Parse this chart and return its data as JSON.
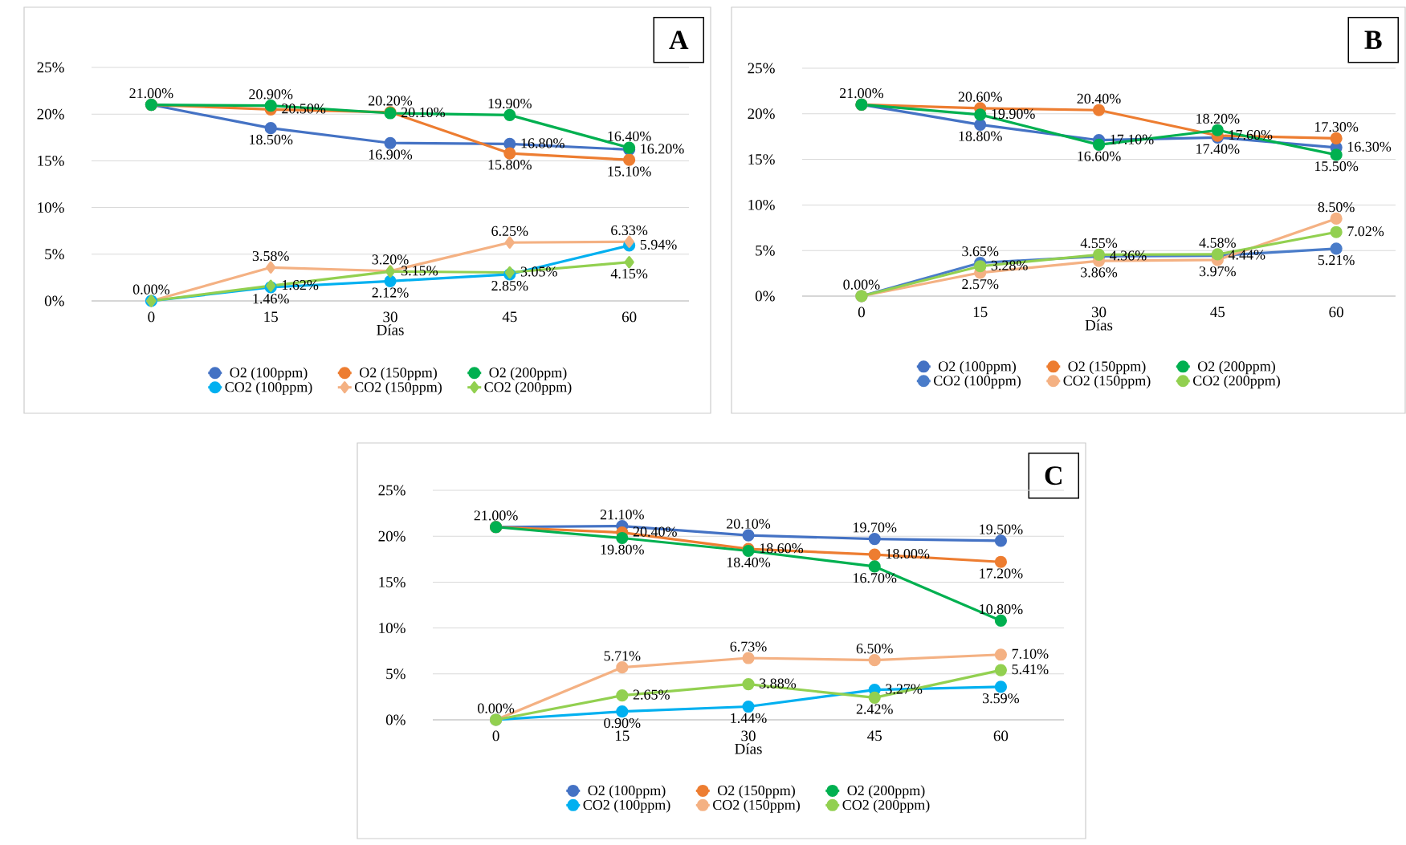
{
  "chart_data": [
    {
      "type": "line",
      "title": "A",
      "xlabel": "Días",
      "categories": [
        "0",
        "15",
        "30",
        "45",
        "60"
      ],
      "ylim": [
        0,
        25
      ],
      "yticks": [
        {
          "value": 0,
          "label": "0%"
        },
        {
          "value": 5,
          "label": "5%"
        },
        {
          "value": 10,
          "label": "10%"
        },
        {
          "value": 15,
          "label": "15%"
        },
        {
          "value": 20,
          "label": "20%"
        },
        {
          "value": 25,
          "label": "25%"
        }
      ],
      "grid": "y",
      "legend": "bottom",
      "marker": "circle",
      "line_style": "solid",
      "series": [
        {
          "name": "O2 (100ppm)",
          "color": "#4472c4",
          "values": [
            21.0,
            18.5,
            16.9,
            16.8,
            16.2
          ],
          "value_labels": [
            "21.00%",
            "18.50%",
            "16.90%",
            "16.80%",
            "16.20%"
          ]
        },
        {
          "name": "O2 (150ppm)",
          "color": "#ed7d31",
          "values": [
            21.0,
            20.5,
            20.2,
            15.8,
            15.1
          ],
          "value_labels": [
            null,
            "20.50%",
            "20.20%",
            "15.80%",
            "15.10%"
          ]
        },
        {
          "name": "O2 (200ppm)",
          "color": "#00b050",
          "values": [
            21.0,
            20.9,
            20.1,
            19.9,
            16.4
          ],
          "value_labels": [
            null,
            "20.90%",
            "20.10%",
            "19.90%",
            "16.40%"
          ]
        },
        {
          "name": "CO2 (100ppm)",
          "color": "#00b0f0",
          "values": [
            0.0,
            1.46,
            2.12,
            2.85,
            5.94
          ],
          "value_labels": [
            null,
            "1.46%",
            "2.12%",
            "2.85%",
            "5.94%"
          ]
        },
        {
          "name": "CO2 (150ppm)",
          "color": "#f4b183",
          "marker": "diamond",
          "values": [
            0.0,
            3.58,
            3.2,
            6.25,
            6.33
          ],
          "value_labels": [
            "0.00%",
            "3.58%",
            "3.20%",
            "6.25%",
            "6.33%"
          ]
        },
        {
          "name": "CO2 (200ppm)",
          "color": "#92d050",
          "marker": "diamond",
          "values": [
            0.0,
            1.62,
            3.15,
            3.05,
            4.15
          ],
          "value_labels": [
            null,
            "1.62%",
            "3.15%",
            "3.05%",
            "4.15%"
          ]
        }
      ]
    },
    {
      "type": "line",
      "title": "B",
      "xlabel": "Días",
      "categories": [
        "0",
        "15",
        "30",
        "45",
        "60"
      ],
      "ylim": [
        0,
        25
      ],
      "yticks": [
        {
          "value": 0,
          "label": "0%"
        },
        {
          "value": 5,
          "label": "5%"
        },
        {
          "value": 10,
          "label": "10%"
        },
        {
          "value": 15,
          "label": "15%"
        },
        {
          "value": 20,
          "label": "20%"
        },
        {
          "value": 25,
          "label": "25%"
        }
      ],
      "grid": "y",
      "legend": "bottom",
      "marker": "circle",
      "line_style": "solid",
      "series": [
        {
          "name": "O2 (100ppm)",
          "color": "#4472c4",
          "values": [
            21.0,
            18.8,
            17.1,
            17.4,
            16.3
          ],
          "value_labels": [
            "21.00%",
            "18.80%",
            "17.10%",
            "17.40%",
            "16.30%"
          ]
        },
        {
          "name": "O2 (150ppm)",
          "color": "#ed7d31",
          "values": [
            21.0,
            20.6,
            20.4,
            17.6,
            17.3
          ],
          "value_labels": [
            null,
            "20.60%",
            "20.40%",
            "17.60%",
            "17.30%"
          ]
        },
        {
          "name": "O2 (200ppm)",
          "color": "#00b050",
          "values": [
            21.0,
            19.9,
            16.6,
            18.2,
            15.5
          ],
          "value_labels": [
            null,
            "19.90%",
            "16.60%",
            "18.20%",
            "15.50%"
          ]
        },
        {
          "name": "CO2 (100ppm)",
          "color": "#4a7cc9",
          "values": [
            0.0,
            3.65,
            4.36,
            4.44,
            5.21
          ],
          "value_labels": [
            "0.00%",
            "3.65%",
            "4.36%",
            "4.44%",
            "5.21%"
          ]
        },
        {
          "name": "CO2 (150ppm)",
          "color": "#f4b183",
          "values": [
            0.0,
            2.57,
            3.86,
            3.97,
            8.5
          ],
          "value_labels": [
            null,
            "2.57%",
            "3.86%",
            "3.97%",
            "8.50%"
          ]
        },
        {
          "name": "CO2 (200ppm)",
          "color": "#92d050",
          "values": [
            0.0,
            3.28,
            4.55,
            4.58,
            7.02
          ],
          "value_labels": [
            null,
            "3.28%",
            "4.55%",
            "4.58%",
            "7.02%"
          ]
        }
      ]
    },
    {
      "type": "line",
      "title": "C",
      "xlabel": "Días",
      "categories": [
        "0",
        "15",
        "30",
        "45",
        "60"
      ],
      "ylim": [
        0,
        25
      ],
      "yticks": [
        {
          "value": 0,
          "label": "0%"
        },
        {
          "value": 5,
          "label": "5%"
        },
        {
          "value": 10,
          "label": "10%"
        },
        {
          "value": 15,
          "label": "15%"
        },
        {
          "value": 20,
          "label": "20%"
        },
        {
          "value": 25,
          "label": "25%"
        }
      ],
      "grid": "y",
      "legend": "bottom",
      "marker": "circle",
      "line_style": "solid",
      "series": [
        {
          "name": "O2 (100ppm)",
          "color": "#4472c4",
          "values": [
            21.0,
            21.1,
            20.1,
            19.7,
            19.5
          ],
          "value_labels": [
            "21.00%",
            "21.10%",
            "20.10%",
            "19.70%",
            "19.50%"
          ]
        },
        {
          "name": "O2 (150ppm)",
          "color": "#ed7d31",
          "values": [
            21.0,
            20.4,
            18.6,
            18.0,
            17.2
          ],
          "value_labels": [
            null,
            "20.40%",
            "18.60%",
            "18.00%",
            "17.20%"
          ]
        },
        {
          "name": "O2 (200ppm)",
          "color": "#00b050",
          "values": [
            21.0,
            19.8,
            18.4,
            16.7,
            10.8
          ],
          "value_labels": [
            null,
            "19.80%",
            "18.40%",
            "16.70%",
            "10.80%"
          ]
        },
        {
          "name": "CO2 (100ppm)",
          "color": "#00b0f0",
          "values": [
            0.0,
            0.9,
            1.44,
            3.27,
            3.59
          ],
          "value_labels": [
            "0.00%",
            "0.90%",
            "1.44%",
            "3.27%",
            "3.59%"
          ]
        },
        {
          "name": "CO2 (150ppm)",
          "color": "#f4b183",
          "values": [
            0.0,
            5.71,
            6.73,
            6.5,
            7.1
          ],
          "value_labels": [
            null,
            "5.71%",
            "6.73%",
            "6.50%",
            "7.10%"
          ]
        },
        {
          "name": "CO2 (200ppm)",
          "color": "#92d050",
          "values": [
            0.0,
            2.65,
            3.88,
            2.42,
            5.41
          ],
          "value_labels": [
            null,
            "2.65%",
            "3.88%",
            "2.42%",
            "5.41%"
          ]
        }
      ]
    }
  ]
}
